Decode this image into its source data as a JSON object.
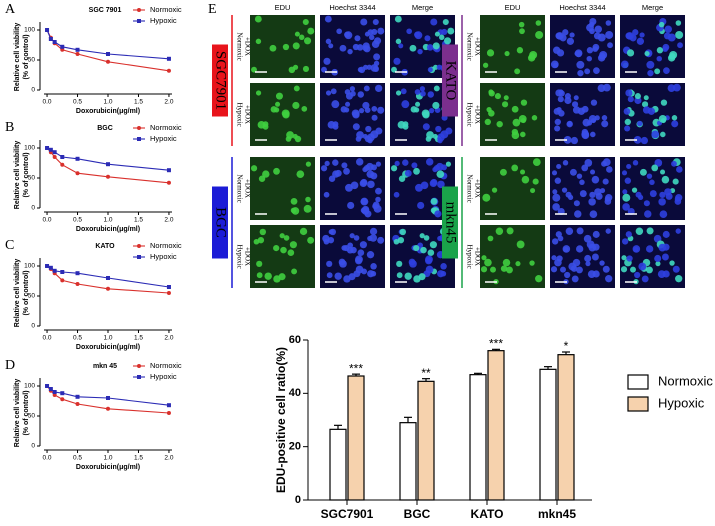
{
  "chart_data": [
    {
      "type": "line",
      "panel": "A",
      "title": "SGC 7901",
      "xlabel": "Doxorubicin(μg/ml)",
      "ylabel": [
        "Relative cell viability",
        "(% of control)"
      ],
      "x": [
        0,
        0.0625,
        0.125,
        0.25,
        0.5,
        1,
        2
      ],
      "series": [
        {
          "name": "Normoxic",
          "color": "#d9302c",
          "marker": "circle",
          "values": [
            100,
            87,
            78,
            67,
            60,
            47,
            32
          ]
        },
        {
          "name": "Hypoxic",
          "color": "#2b2bb5",
          "marker": "square",
          "values": [
            100,
            85,
            80,
            72,
            67,
            60,
            52
          ]
        }
      ],
      "xlim": [
        -0.05,
        2.05
      ],
      "xticks": [
        {
          "value": 0,
          "label": "0.0"
        },
        {
          "value": 0.5,
          "label": "0.5"
        },
        {
          "value": 1,
          "label": "1.0"
        },
        {
          "value": 1.5,
          "label": "1.5"
        },
        {
          "value": 2,
          "label": "2.0"
        }
      ],
      "ylim": [
        0,
        110
      ],
      "yticks": [
        0,
        50,
        100
      ],
      "legend": "upper right"
    },
    {
      "type": "line",
      "panel": "B",
      "title": "BGC",
      "xlabel": "Doxorubicin(μg/ml)",
      "ylabel": [
        "Relative cell viability",
        "(% of control)"
      ],
      "x": [
        0,
        0.0625,
        0.125,
        0.25,
        0.5,
        1,
        2
      ],
      "series": [
        {
          "name": "Normoxic",
          "color": "#d9302c",
          "marker": "circle",
          "values": [
            100,
            93,
            85,
            72,
            58,
            52,
            42
          ]
        },
        {
          "name": "Hypoxic",
          "color": "#2b2bb5",
          "marker": "square",
          "values": [
            100,
            97,
            93,
            85,
            82,
            73,
            63
          ]
        }
      ],
      "xlim": [
        -0.05,
        2.05
      ],
      "xticks": [
        {
          "value": 0,
          "label": "0.0"
        },
        {
          "value": 0.5,
          "label": "0.5"
        },
        {
          "value": 1,
          "label": "1.0"
        },
        {
          "value": 1.5,
          "label": "1.5"
        },
        {
          "value": 2,
          "label": "2.0"
        }
      ],
      "ylim": [
        0,
        110
      ],
      "yticks": [
        0,
        50,
        100
      ],
      "legend": "upper right"
    },
    {
      "type": "line",
      "panel": "C",
      "title": "KATO",
      "xlabel": "Doxorubicin(μg/ml)",
      "ylabel": [
        "Relative cell viability",
        "(% of control)"
      ],
      "x": [
        0,
        0.0625,
        0.125,
        0.25,
        0.5,
        1,
        2
      ],
      "series": [
        {
          "name": "Normoxic",
          "color": "#d9302c",
          "marker": "circle",
          "values": [
            100,
            95,
            88,
            76,
            70,
            62,
            55
          ]
        },
        {
          "name": "Hypoxic",
          "color": "#2b2bb5",
          "marker": "square",
          "values": [
            100,
            97,
            92,
            90,
            88,
            80,
            65
          ]
        }
      ],
      "xlim": [
        -0.05,
        2.05
      ],
      "xticks": [
        {
          "value": 0,
          "label": "0.0"
        },
        {
          "value": 0.5,
          "label": "0.5"
        },
        {
          "value": 1,
          "label": "1.0"
        },
        {
          "value": 1.5,
          "label": "1.5"
        },
        {
          "value": 2,
          "label": "2.0"
        }
      ],
      "ylim": [
        0,
        110
      ],
      "yticks": [
        0,
        50,
        100
      ],
      "legend": "upper right"
    },
    {
      "type": "line",
      "panel": "D",
      "title": "mkn 45",
      "xlabel": "Doxorubicin(μg/ml)",
      "ylabel": [
        "Relative cell viability",
        "(% of control)"
      ],
      "x": [
        0,
        0.0625,
        0.125,
        0.25,
        0.5,
        1,
        2
      ],
      "series": [
        {
          "name": "Normoxic",
          "color": "#d9302c",
          "marker": "circle",
          "values": [
            100,
            92,
            85,
            78,
            70,
            62,
            55
          ]
        },
        {
          "name": "Hypoxic",
          "color": "#2b2bb5",
          "marker": "square",
          "values": [
            100,
            95,
            90,
            88,
            82,
            80,
            68
          ]
        }
      ],
      "xlim": [
        -0.05,
        2.05
      ],
      "xticks": [
        {
          "value": 0,
          "label": "0.0"
        },
        {
          "value": 0.5,
          "label": "0.5"
        },
        {
          "value": 1,
          "label": "1.0"
        },
        {
          "value": 1.5,
          "label": "1.5"
        },
        {
          "value": 2,
          "label": "2.0"
        }
      ],
      "ylim": [
        0,
        110
      ],
      "yticks": [
        0,
        50,
        100
      ],
      "legend": "upper right"
    },
    {
      "type": "bar",
      "ylabel": "EDU-positive cell ratio(%)",
      "categories": [
        "SGC7901",
        "BGC",
        "KATO",
        "mkn45"
      ],
      "series": [
        {
          "name": "Normoxic",
          "color": "#ffffff",
          "values": [
            26.5,
            29,
            47,
            49
          ],
          "errors": [
            1.5,
            2,
            0.5,
            1
          ]
        },
        {
          "name": "Hypoxic",
          "color": "#f6d2ad",
          "values": [
            46.5,
            44.5,
            56,
            54.5
          ],
          "errors": [
            0.7,
            1,
            0.5,
            1
          ]
        }
      ],
      "annotations": [
        "***",
        "**",
        "***",
        "*"
      ],
      "ylim": [
        0,
        60
      ],
      "yticks": [
        0,
        20,
        40,
        60
      ],
      "legend": "right"
    }
  ],
  "figure": {
    "panel": "E",
    "columns": [
      "EDU",
      "Hoechst 3344",
      "Merge"
    ],
    "groups": [
      {
        "cell_line": "SGC7901",
        "color": "#e8141b",
        "rows": [
          [
            "Normoxic",
            "+DOX"
          ],
          [
            "Hypoxic",
            "+DOX"
          ]
        ]
      },
      {
        "cell_line": "BGC",
        "color": "#1c1cd6",
        "rows": [
          [
            "Normoxic",
            "+DOX"
          ],
          [
            "Hypoxic",
            "+DOX"
          ]
        ]
      },
      {
        "cell_line": "KATO",
        "color": "#7b2f8e",
        "rows": [
          [
            "Normoxic",
            "+DOX"
          ],
          [
            "Hypoxic",
            "+DOX"
          ]
        ]
      },
      {
        "cell_line": "mkn45",
        "color": "#1aa34a",
        "rows": [
          [
            "Normoxic",
            "+DOX"
          ],
          [
            "Hypoxic",
            "+DOX"
          ]
        ]
      }
    ]
  }
}
